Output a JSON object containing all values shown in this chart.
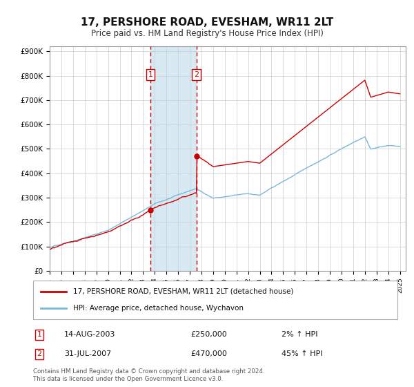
{
  "title": "17, PERSHORE ROAD, EVESHAM, WR11 2LT",
  "subtitle": "Price paid vs. HM Land Registry's House Price Index (HPI)",
  "ylabel_ticks": [
    "£0",
    "£100K",
    "£200K",
    "£300K",
    "£400K",
    "£500K",
    "£600K",
    "£700K",
    "£800K",
    "£900K"
  ],
  "ytick_values": [
    0,
    100000,
    200000,
    300000,
    400000,
    500000,
    600000,
    700000,
    800000,
    900000
  ],
  "ylim": [
    0,
    920000
  ],
  "xlim_start": 1995.0,
  "xlim_end": 2025.5,
  "purchase1_year": 2003.62,
  "purchase1_price": 250000,
  "purchase1_label": "14-AUG-2003",
  "purchase1_pct": "2%",
  "purchase2_year": 2007.58,
  "purchase2_price": 470000,
  "purchase2_label": "31-JUL-2007",
  "purchase2_pct": "45%",
  "legend_line1": "17, PERSHORE ROAD, EVESHAM, WR11 2LT (detached house)",
  "legend_line2": "HPI: Average price, detached house, Wychavon",
  "footer": "Contains HM Land Registry data © Crown copyright and database right 2024.\nThis data is licensed under the Open Government Licence v3.0.",
  "hpi_color": "#7ab8d9",
  "price_color": "#cc0000",
  "shade_color": "#cde4f0",
  "marker_box_color": "#cc0000",
  "background_color": "#ffffff"
}
